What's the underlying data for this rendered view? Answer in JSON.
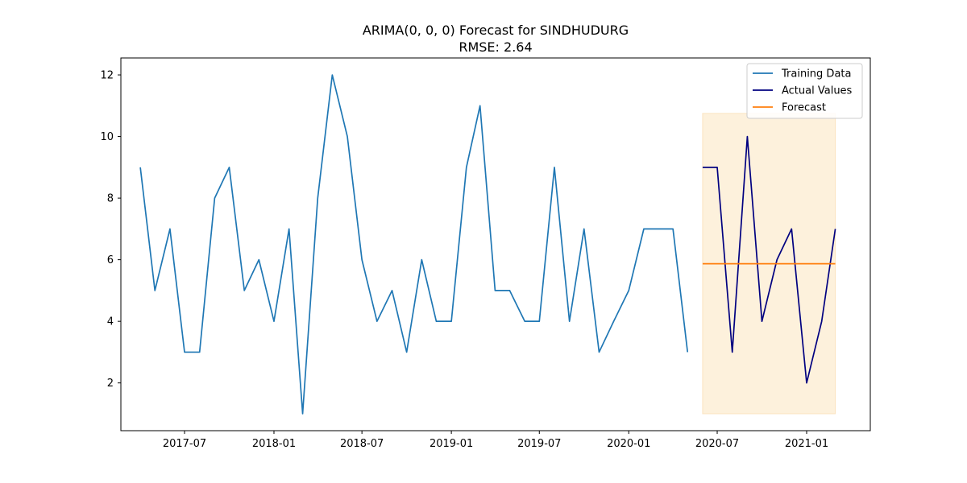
{
  "chart_data": {
    "type": "line",
    "title": "ARIMA(0, 0, 0) Forecast for SINDHUDURG",
    "subtitle": "RMSE: 2.64",
    "xlabel": "",
    "ylabel": "",
    "x_axis": {
      "type": "date",
      "range": [
        "2017-02-20",
        "2021-05-12"
      ],
      "tick_labels": [
        "2017-07",
        "2018-01",
        "2018-07",
        "2019-01",
        "2019-07",
        "2020-01",
        "2020-07",
        "2021-01"
      ],
      "tick_dates": [
        "2017-07-01",
        "2018-01-01",
        "2018-07-01",
        "2019-01-01",
        "2019-07-01",
        "2020-01-01",
        "2020-07-01",
        "2021-01-01"
      ]
    },
    "ylim": [
      0.45,
      12.55
    ],
    "y_ticks": [
      2,
      4,
      6,
      8,
      10,
      12
    ],
    "grid": false,
    "legend_position": "top-right",
    "series": [
      {
        "name": "Training Data",
        "color": "#1f77b4",
        "points": [
          [
            "2017-04",
            9
          ],
          [
            "2017-05",
            5
          ],
          [
            "2017-06",
            7
          ],
          [
            "2017-07",
            3
          ],
          [
            "2017-08",
            3
          ],
          [
            "2017-09",
            8
          ],
          [
            "2017-10",
            9
          ],
          [
            "2017-11",
            5
          ],
          [
            "2017-12",
            6
          ],
          [
            "2018-01",
            4
          ],
          [
            "2018-02",
            7
          ],
          [
            "2018-03",
            1
          ],
          [
            "2018-04",
            8
          ],
          [
            "2018-05",
            12
          ],
          [
            "2018-06",
            10
          ],
          [
            "2018-07",
            6
          ],
          [
            "2018-08",
            4
          ],
          [
            "2018-09",
            5
          ],
          [
            "2018-10",
            3
          ],
          [
            "2018-11",
            6
          ],
          [
            "2018-12",
            4
          ],
          [
            "2019-01",
            4
          ],
          [
            "2019-02",
            9
          ],
          [
            "2019-03",
            11
          ],
          [
            "2019-04",
            5
          ],
          [
            "2019-05",
            5
          ],
          [
            "2019-06",
            4
          ],
          [
            "2019-07",
            4
          ],
          [
            "2019-08",
            9
          ],
          [
            "2019-09",
            4
          ],
          [
            "2019-10",
            7
          ],
          [
            "2019-11",
            3
          ],
          [
            "2019-12",
            4
          ],
          [
            "2020-01",
            5
          ],
          [
            "2020-02",
            7
          ],
          [
            "2020-03",
            7
          ],
          [
            "2020-04",
            7
          ],
          [
            "2020-05",
            3
          ]
        ]
      },
      {
        "name": "Actual Values",
        "color": "#000080",
        "points": [
          [
            "2020-06",
            9
          ],
          [
            "2020-07",
            9
          ],
          [
            "2020-08",
            3
          ],
          [
            "2020-09",
            10
          ],
          [
            "2020-10",
            4
          ],
          [
            "2020-11",
            6
          ],
          [
            "2020-12",
            7
          ],
          [
            "2021-01",
            2
          ],
          [
            "2021-02",
            4
          ],
          [
            "2021-03",
            7
          ]
        ]
      },
      {
        "name": "Forecast",
        "color": "#ff7f0e",
        "points": [
          [
            "2020-06",
            5.87
          ],
          [
            "2021-03",
            5.87
          ]
        ]
      }
    ],
    "confidence_band": {
      "x_range": [
        "2020-06",
        "2021-03"
      ],
      "y_range": [
        1.0,
        10.75
      ],
      "color": "#fdf1dc"
    }
  }
}
